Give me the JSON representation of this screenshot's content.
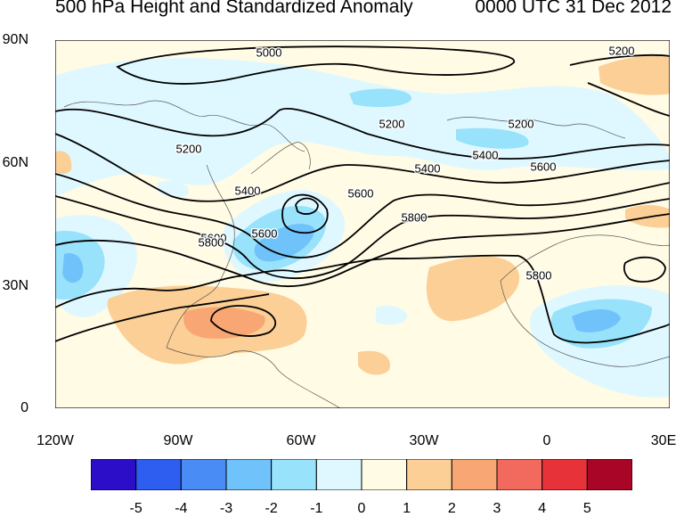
{
  "title_left": "500 hPa Height and Standardized Anomaly",
  "title_right": "0000 UTC 31 Dec 2012",
  "lat_ticks": [
    "90N",
    "60N",
    "30N",
    "0"
  ],
  "lon_ticks": [
    "120W",
    "90W",
    "60W",
    "30W",
    "0",
    "30E"
  ],
  "contour_labels": [
    "5000",
    "5200",
    "5200",
    "5200",
    "5200",
    "5400",
    "5400",
    "5400",
    "5600",
    "5600",
    "5600",
    "5600",
    "5800",
    "5800",
    "5800"
  ],
  "colorbar": {
    "colors": [
      "#2c0ec8",
      "#2e5ef0",
      "#4a8cf5",
      "#70c2fa",
      "#98e2fb",
      "#dff8ff",
      "#fffbe5",
      "#fbcf96",
      "#f8a774",
      "#f26a5d",
      "#e8323a",
      "#a90526"
    ],
    "labels": [
      "-5",
      "-4",
      "-3",
      "-2",
      "-1",
      "0",
      "1",
      "2",
      "3",
      "4",
      "5"
    ]
  }
}
